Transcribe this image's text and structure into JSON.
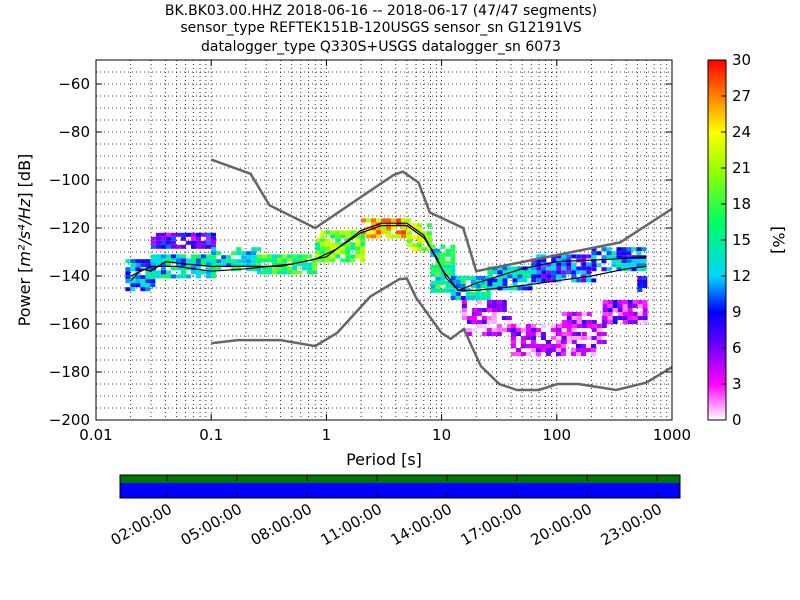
{
  "title": {
    "line1": "BK.BK03.00.HHZ   2018-06-16 -- 2018-06-17  (47/47 segments)",
    "line2": "sensor_type REFTEK151B-120USGS sensor_sn G12191VS",
    "line3": "datalogger_type Q330S+USGS datalogger_sn 6073"
  },
  "chart_data": {
    "type": "heatmap",
    "xlabel": "Period [s]",
    "ylabel_prefix": "Power [",
    "ylabel_units": "m²/s⁴/Hz",
    "ylabel_suffix": "] [dB]",
    "xscale": "log",
    "xlim": [
      0.01,
      1000
    ],
    "ylim": [
      -200,
      -50
    ],
    "xticks": [
      {
        "value": 0.01,
        "label": "0.01"
      },
      {
        "value": 0.1,
        "label": "0.1"
      },
      {
        "value": 1,
        "label": "1"
      },
      {
        "value": 10,
        "label": "10"
      },
      {
        "value": 100,
        "label": "100"
      },
      {
        "value": 1000,
        "label": "1000"
      }
    ],
    "yticks": [
      {
        "value": -200,
        "label": "−200"
      },
      {
        "value": -180,
        "label": "−180"
      },
      {
        "value": -160,
        "label": "−160"
      },
      {
        "value": -140,
        "label": "−140"
      },
      {
        "value": -120,
        "label": "−120"
      },
      {
        "value": -100,
        "label": "−100"
      },
      {
        "value": -80,
        "label": "−80"
      },
      {
        "value": -60,
        "label": "−60"
      }
    ],
    "grid": "dotted",
    "colorbar": {
      "label": "[%]",
      "range": [
        0,
        30
      ],
      "ticks": [
        "0",
        "3",
        "6",
        "9",
        "12",
        "15",
        "18",
        "21",
        "24",
        "27",
        "30"
      ]
    },
    "noise_model_high": [
      [
        0.1,
        -91.5
      ],
      [
        0.22,
        -97.4
      ],
      [
        0.32,
        -110.5
      ],
      [
        0.8,
        -120
      ],
      [
        3.8,
        -98
      ],
      [
        4.6,
        -96.5
      ],
      [
        6.3,
        -101
      ],
      [
        7.9,
        -113.5
      ],
      [
        15.4,
        -120
      ],
      [
        20,
        -138
      ],
      [
        354.8,
        -126
      ],
      [
        1000,
        -112
      ]
    ],
    "noise_model_low": [
      [
        0.1,
        -168
      ],
      [
        0.17,
        -166.7
      ],
      [
        0.4,
        -166.7
      ],
      [
        0.8,
        -169.2
      ],
      [
        1.24,
        -163.7
      ],
      [
        2.4,
        -148.6
      ],
      [
        4.3,
        -141.3
      ],
      [
        5,
        -141.1
      ],
      [
        6,
        -149
      ],
      [
        10,
        -163.8
      ],
      [
        12,
        -166.2
      ],
      [
        15.6,
        -162.1
      ],
      [
        21.9,
        -177.5
      ],
      [
        31.6,
        -185
      ],
      [
        45,
        -187.5
      ],
      [
        70,
        -187.5
      ],
      [
        101,
        -185
      ],
      [
        154,
        -185
      ],
      [
        328,
        -187.5
      ],
      [
        600,
        -184.4
      ],
      [
        1000,
        -178
      ]
    ],
    "mean_curve": [
      [
        0.02,
        -142
      ],
      [
        0.025,
        -137
      ],
      [
        0.03,
        -138
      ],
      [
        0.04,
        -134
      ],
      [
        0.06,
        -135
      ],
      [
        0.1,
        -136
      ],
      [
        0.2,
        -136
      ],
      [
        0.4,
        -136
      ],
      [
        0.8,
        -133
      ],
      [
        1.2,
        -129
      ],
      [
        2,
        -122
      ],
      [
        3,
        -119
      ],
      [
        5,
        -119
      ],
      [
        7,
        -124
      ],
      [
        9,
        -132
      ],
      [
        11,
        -141
      ],
      [
        14,
        -146
      ],
      [
        20,
        -146
      ],
      [
        50,
        -144
      ],
      [
        100,
        -142
      ],
      [
        200,
        -140
      ],
      [
        400,
        -137
      ],
      [
        600,
        -136
      ]
    ],
    "mode_curve": [
      [
        0.02,
        -140
      ],
      [
        0.03,
        -136
      ],
      [
        0.05,
        -136
      ],
      [
        0.1,
        -138
      ],
      [
        0.2,
        -137
      ],
      [
        0.5,
        -135
      ],
      [
        1,
        -132
      ],
      [
        2,
        -121
      ],
      [
        3,
        -118
      ],
      [
        5,
        -118
      ],
      [
        7,
        -123
      ],
      [
        10,
        -137
      ],
      [
        14,
        -146
      ],
      [
        20,
        -143
      ],
      [
        50,
        -137
      ],
      [
        100,
        -134
      ],
      [
        300,
        -133
      ],
      [
        600,
        -132
      ]
    ],
    "heat_bands": [
      {
        "x": [
          0.018,
          0.03
        ],
        "y": [
          -146,
          -133
        ],
        "level": 10
      },
      {
        "x": [
          0.03,
          0.1
        ],
        "y": [
          -140,
          -131
        ],
        "level": 12
      },
      {
        "x": [
          0.03,
          0.1
        ],
        "y": [
          -128,
          -122
        ],
        "level": 6
      },
      {
        "x": [
          0.1,
          0.25
        ],
        "y": [
          -138,
          -128
        ],
        "level": 13
      },
      {
        "x": [
          0.25,
          0.8
        ],
        "y": [
          -138,
          -131
        ],
        "level": 16
      },
      {
        "x": [
          0.8,
          2
        ],
        "y": [
          -134,
          -121
        ],
        "level": 18
      },
      {
        "x": [
          2,
          5
        ],
        "y": [
          -123,
          -116
        ],
        "level": 24
      },
      {
        "x": [
          5,
          8
        ],
        "y": [
          -128,
          -118
        ],
        "level": 20
      },
      {
        "x": [
          8,
          12
        ],
        "y": [
          -146,
          -127
        ],
        "level": 14
      },
      {
        "x": [
          12,
          25
        ],
        "y": [
          -150,
          -140
        ],
        "level": 12
      },
      {
        "x": [
          25,
          60
        ],
        "y": [
          -145,
          -136
        ],
        "level": 11
      },
      {
        "x": [
          60,
          200
        ],
        "y": [
          -142,
          -131
        ],
        "level": 8
      },
      {
        "x": [
          200,
          600
        ],
        "y": [
          -138,
          -128
        ],
        "level": 10
      },
      {
        "x": [
          15,
          40
        ],
        "y": [
          -165,
          -150
        ],
        "level": 2
      },
      {
        "x": [
          40,
          200
        ],
        "y": [
          -173,
          -160
        ],
        "level": 3
      },
      {
        "x": [
          100,
          250
        ],
        "y": [
          -168,
          -155
        ],
        "level": 2
      },
      {
        "x": [
          250,
          600
        ],
        "y": [
          -160,
          -150
        ],
        "level": 4
      },
      {
        "x": [
          500,
          600
        ],
        "y": [
          -146,
          -140
        ],
        "level": 5
      }
    ]
  },
  "timeline": {
    "ticks": [
      "02:00:00",
      "05:00:00",
      "08:00:00",
      "11:00:00",
      "14:00:00",
      "17:00:00",
      "20:00:00",
      "23:00:00"
    ],
    "bar_colors": {
      "top": "#007700",
      "bottom": "#0000ff"
    }
  }
}
